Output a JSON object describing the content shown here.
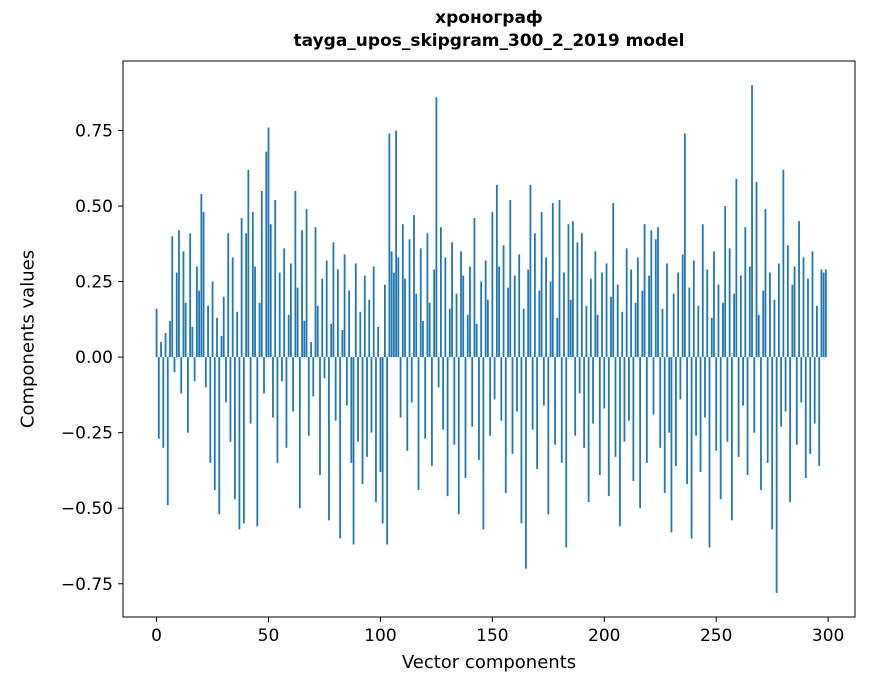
{
  "figure": {
    "title_line1": "хронограф",
    "title_line2": "tayga_upos_skipgram_300_2_2019 model",
    "xlabel": "Vector components",
    "ylabel": "Components values"
  },
  "chart_data": {
    "type": "bar",
    "title": "хронограф\ntayga_upos_skipgram_300_2_2019 model",
    "xlabel": "Vector components",
    "ylabel": "Components values",
    "legend": "none",
    "grid": false,
    "bar_color": "#1f77b4",
    "bar_width": 0.8,
    "x_start": 0,
    "xlim": [
      -15,
      312
    ],
    "ylim": [
      -0.86,
      0.98
    ],
    "x_ticks": [
      0,
      50,
      100,
      150,
      200,
      250,
      300
    ],
    "y_ticks": [
      -0.75,
      -0.5,
      -0.25,
      0,
      0.25,
      0.5,
      0.75
    ],
    "values": [
      0.16,
      -0.27,
      0.05,
      -0.3,
      0.08,
      -0.49,
      0.12,
      0.4,
      -0.05,
      0.28,
      0.42,
      -0.12,
      0.35,
      0.18,
      -0.25,
      0.41,
      0.1,
      -0.08,
      0.3,
      0.22,
      0.54,
      0.48,
      -0.1,
      0.17,
      -0.35,
      0.25,
      -0.44,
      0.13,
      -0.52,
      0.07,
      0.2,
      -0.15,
      0.41,
      -0.28,
      0.33,
      -0.47,
      0.15,
      -0.57,
      0.46,
      -0.55,
      0.41,
      0.62,
      -0.22,
      0.48,
      0.3,
      -0.56,
      0.18,
      0.55,
      -0.12,
      0.68,
      0.76,
      0.44,
      -0.2,
      0.52,
      -0.35,
      0.28,
      -0.08,
      0.36,
      -0.3,
      0.14,
      0.31,
      -0.18,
      0.55,
      0.23,
      -0.5,
      0.42,
      0.12,
      0.49,
      -0.26,
      0.05,
      -0.13,
      0.43,
      0.17,
      -0.39,
      0.26,
      -0.07,
      0.32,
      -0.54,
      0.11,
      0.38,
      -0.21,
      0.29,
      -0.6,
      0.09,
      0.34,
      -0.16,
      0.22,
      -0.35,
      -0.62,
      0.31,
      -0.28,
      0.15,
      -0.42,
      0.27,
      -0.33,
      0.19,
      -0.25,
      0.3,
      -0.48,
      0.1,
      -0.38,
      -0.55,
      0.24,
      -0.62,
      0.74,
      0.35,
      0.28,
      0.75,
      0.33,
      -0.2,
      0.44,
      0.26,
      -0.31,
      0.39,
      -0.15,
      0.47,
      0.21,
      -0.44,
      0.36,
      0.12,
      -0.27,
      0.41,
      0.18,
      -0.36,
      0.29,
      0.86,
      -0.1,
      0.43,
      -0.24,
      0.33,
      -0.46,
      0.16,
      0.38,
      -0.29,
      0.21,
      -0.52,
      0.35,
      0.27,
      -0.4,
      0.14,
      0.3,
      -0.23,
      0.46,
      0.11,
      -0.34,
      0.25,
      -0.57,
      0.32,
      0.19,
      -0.26,
      0.48,
      -0.14,
      0.57,
      0.3,
      -0.21,
      0.37,
      -0.45,
      0.23,
      0.52,
      -0.32,
      0.27,
      -0.18,
      0.34,
      -0.55,
      0.16,
      -0.7,
      0.29,
      0.57,
      -0.24,
      0.41,
      -0.37,
      0.22,
      0.48,
      -0.16,
      0.33,
      -0.52,
      0.25,
      0.51,
      -0.29,
      0.13,
      0.52,
      -0.35,
      0.28,
      -0.63,
      0.44,
      0.19,
      0.45,
      -0.26,
      0.38,
      -0.12,
      0.41,
      -0.3,
      0.17,
      -0.48,
      0.26,
      -0.22,
      0.35,
      0.14,
      -0.39,
      0.28,
      -0.17,
      0.31,
      -0.46,
      0.2,
      0.51,
      -0.33,
      0.24,
      -0.56,
      0.15,
      -0.28,
      0.36,
      -0.21,
      0.29,
      -0.41,
      0.18,
      0.33,
      -0.5,
      0.22,
      0.44,
      -0.35,
      0.27,
      0.42,
      -0.19,
      0.39,
      0.43,
      -0.3,
      0.16,
      -0.45,
      0.31,
      -0.25,
      -0.58,
      0.21,
      -0.36,
      0.28,
      -0.14,
      0.34,
      0.74,
      -0.42,
      0.23,
      -0.6,
      0.32,
      -0.26,
      0.17,
      -0.38,
      0.44,
      -0.2,
      0.29,
      -0.63,
      0.13,
      0.35,
      -0.31,
      0.24,
      -0.47,
      0.18,
      0.5,
      -0.28,
      0.36,
      -0.54,
      0.21,
      0.59,
      -0.33,
      0.27,
      -0.16,
      0.43,
      -0.39,
      0.3,
      0.9,
      -0.25,
      0.58,
      0.14,
      -0.44,
      0.22,
      0.49,
      -0.35,
      0.28,
      -0.57,
      0.19,
      -0.78,
      0.31,
      -0.23,
      0.62,
      -0.18,
      0.37,
      -0.48,
      0.24,
      0.3,
      -0.29,
      0.45,
      -0.15,
      0.33,
      -0.4,
      0.26,
      -0.32,
      0.35,
      -0.22,
      0.17,
      -0.36,
      0.29,
      0.28,
      0.29
    ]
  }
}
